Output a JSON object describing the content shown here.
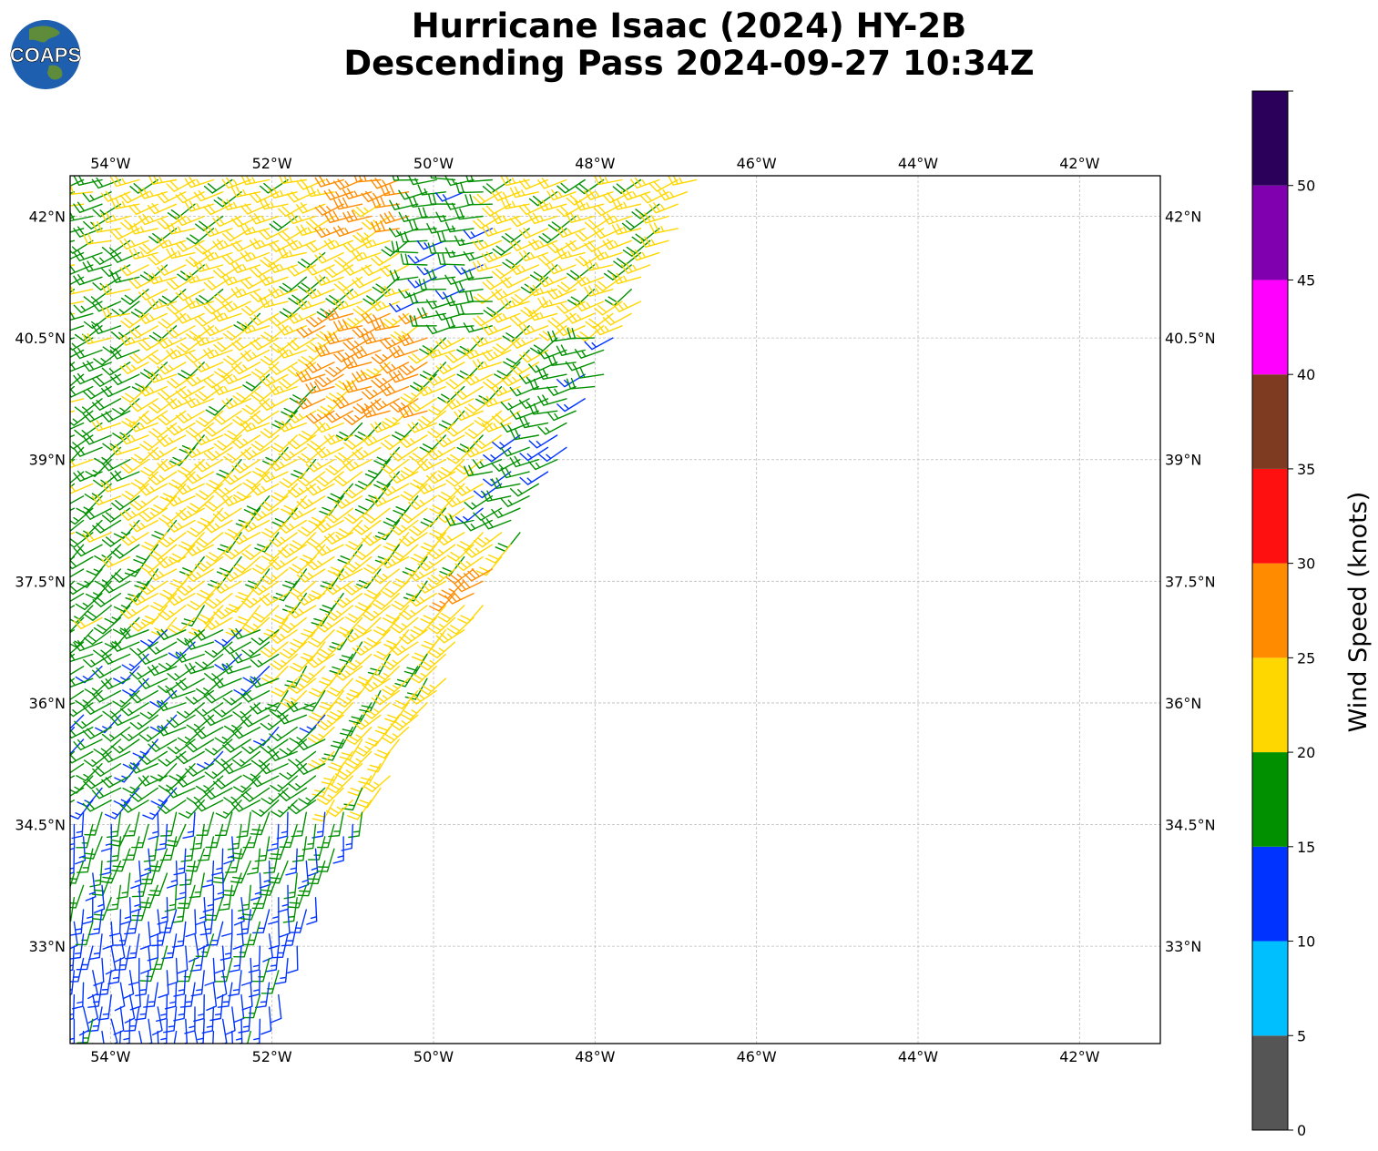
{
  "title": {
    "line1": "Hurricane Isaac (2024) HY-2B",
    "line2": "Descending Pass 2024-09-27 10:34Z"
  },
  "logo": {
    "text": "COAPS",
    "icon": "globe-logo-icon",
    "ocean_color": "#1f5fb0",
    "land_color": "#5e8c3a"
  },
  "map": {
    "lon_range": [
      -54.5,
      -41
    ],
    "lat_range": [
      31.8,
      42.5
    ],
    "gridlines": true,
    "x_ticks": [
      "54°W",
      "52°W",
      "50°W",
      "48°W",
      "46°W",
      "44°W",
      "42°W"
    ],
    "x_tick_values": [
      -54,
      -52,
      -50,
      -48,
      -46,
      -44,
      -42
    ],
    "y_ticks": [
      "42°N",
      "40.5°N",
      "39°N",
      "37.5°N",
      "36°N",
      "34.5°N",
      "33°N"
    ],
    "y_tick_values": [
      42,
      40.5,
      39,
      37.5,
      36,
      34.5,
      33
    ],
    "swath": {
      "description_left_edge_lon": -54.5,
      "east_edge": [
        {
          "lon": -46.5,
          "lat": 42.5
        },
        {
          "lon": -47.7,
          "lat": 40.2
        },
        {
          "lon": -49.9,
          "lat": 36.0
        },
        {
          "lon": -51.4,
          "lat": 33.5
        },
        {
          "lon": -52.0,
          "lat": 31.8
        }
      ]
    },
    "wind_regions": [
      {
        "name": "yellow-north",
        "speed_kt": 22,
        "dir_deg": 225
      },
      {
        "name": "orange-core",
        "speed_kt": 27,
        "dir_deg": 230
      },
      {
        "name": "green-northwest",
        "speed_kt": 18,
        "dir_deg": 230
      },
      {
        "name": "green-band",
        "speed_kt": 17,
        "dir_deg": 240
      },
      {
        "name": "green-south",
        "speed_kt": 16,
        "dir_deg": 200
      },
      {
        "name": "blue-south",
        "speed_kt": 13,
        "dir_deg": 200
      }
    ]
  },
  "colorbar": {
    "label": "Wind Speed (knots)",
    "bins": [
      {
        "from": 0,
        "to": 5,
        "color": "#555555"
      },
      {
        "from": 5,
        "to": 10,
        "color": "#00bfff"
      },
      {
        "from": 10,
        "to": 15,
        "color": "#0033ff"
      },
      {
        "from": 15,
        "to": 20,
        "color": "#009000"
      },
      {
        "from": 20,
        "to": 25,
        "color": "#ffd700"
      },
      {
        "from": 25,
        "to": 30,
        "color": "#ff8c00"
      },
      {
        "from": 30,
        "to": 35,
        "color": "#ff1010"
      },
      {
        "from": 35,
        "to": 40,
        "color": "#7f3a22"
      },
      {
        "from": 40,
        "to": 45,
        "color": "#ff00ff"
      },
      {
        "from": 45,
        "to": 50,
        "color": "#8000b0"
      },
      {
        "from": 50,
        "to": 55,
        "color": "#2b005a"
      }
    ],
    "tick_labels": [
      "0",
      "5",
      "10",
      "15",
      "20",
      "25",
      "30",
      "35",
      "40",
      "45",
      "50"
    ],
    "max": 55
  }
}
